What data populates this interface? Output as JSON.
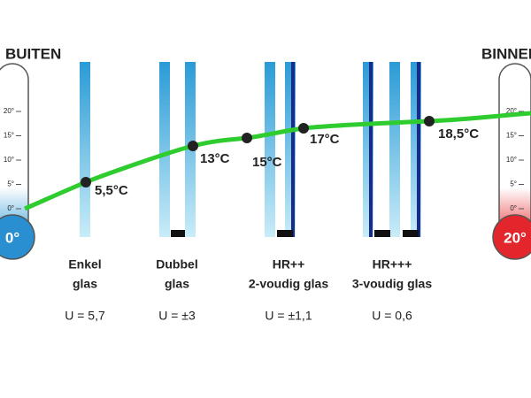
{
  "sides": {
    "outside": {
      "label": "BUITEN",
      "bulb": "0°"
    },
    "inside": {
      "label": "BINNEN",
      "bulb": "20°"
    }
  },
  "scale_ticks": [
    "0°",
    "5°",
    "10°",
    "15°",
    "20°"
  ],
  "glazing": [
    {
      "name": [
        "Enkel",
        "glas"
      ],
      "u_value": "U = 5,7"
    },
    {
      "name": [
        "Dubbel",
        "glas"
      ],
      "u_value": "U = ±3"
    },
    {
      "name": [
        "HR++",
        "2-voudig glas"
      ],
      "u_value": "U = ±1,1"
    },
    {
      "name": [
        "HR+++",
        "3-voudig glas"
      ],
      "u_value": "U = 0,6"
    }
  ],
  "temperature_points": [
    "5,5°C",
    "13°C",
    "15°C",
    "17°C",
    "18,5°C"
  ]
}
